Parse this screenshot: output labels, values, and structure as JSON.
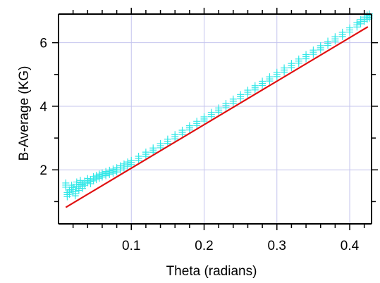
{
  "chart_data": {
    "type": "scatter",
    "xlabel": "Theta (radians)",
    "ylabel": "B-Average (KG)",
    "xlim": [
      0.0,
      0.43
    ],
    "ylim": [
      0.3,
      6.9
    ],
    "x_ticks": [
      {
        "value": 0.1,
        "label": "0.1"
      },
      {
        "value": 0.2,
        "label": "0.2"
      },
      {
        "value": 0.3,
        "label": "0.3"
      },
      {
        "value": 0.4,
        "label": "0.4"
      }
    ],
    "y_ticks": [
      {
        "value": 2,
        "label": "2"
      },
      {
        "value": 4,
        "label": "4"
      },
      {
        "value": 6,
        "label": "6"
      }
    ],
    "grid": true,
    "colors": {
      "points": "#33e8e8",
      "fit": "#e01010",
      "grid": "#c4c4ee",
      "axis": "#000000"
    },
    "series": [
      {
        "kind": "scatter",
        "marker": "plus",
        "x_range": [
          0.01,
          0.427
        ],
        "points": [
          [
            0.01,
            1.52
          ],
          [
            0.012,
            1.22
          ],
          [
            0.015,
            1.3
          ],
          [
            0.018,
            1.45
          ],
          [
            0.02,
            1.38
          ],
          [
            0.023,
            1.25
          ],
          [
            0.025,
            1.55
          ],
          [
            0.028,
            1.42
          ],
          [
            0.03,
            1.6
          ],
          [
            0.033,
            1.48
          ],
          [
            0.036,
            1.58
          ],
          [
            0.04,
            1.66
          ],
          [
            0.044,
            1.63
          ],
          [
            0.048,
            1.72
          ],
          [
            0.052,
            1.76
          ],
          [
            0.056,
            1.8
          ],
          [
            0.06,
            1.84
          ],
          [
            0.065,
            1.88
          ],
          [
            0.07,
            1.92
          ],
          [
            0.075,
            1.96
          ],
          [
            0.08,
            2.0
          ],
          [
            0.085,
            2.06
          ],
          [
            0.09,
            2.12
          ],
          [
            0.095,
            2.18
          ],
          [
            0.1,
            2.23
          ],
          [
            0.11,
            2.36
          ],
          [
            0.12,
            2.49
          ],
          [
            0.13,
            2.62
          ],
          [
            0.14,
            2.76
          ],
          [
            0.15,
            2.9
          ],
          [
            0.16,
            3.04
          ],
          [
            0.17,
            3.18
          ],
          [
            0.18,
            3.32
          ],
          [
            0.19,
            3.46
          ],
          [
            0.2,
            3.6
          ],
          [
            0.21,
            3.74
          ],
          [
            0.22,
            3.88
          ],
          [
            0.23,
            4.02
          ],
          [
            0.24,
            4.16
          ],
          [
            0.25,
            4.3
          ],
          [
            0.26,
            4.44
          ],
          [
            0.27,
            4.58
          ],
          [
            0.28,
            4.72
          ],
          [
            0.29,
            4.86
          ],
          [
            0.3,
            5.0
          ],
          [
            0.31,
            5.14
          ],
          [
            0.32,
            5.28
          ],
          [
            0.33,
            5.42
          ],
          [
            0.34,
            5.56
          ],
          [
            0.35,
            5.7
          ],
          [
            0.36,
            5.84
          ],
          [
            0.37,
            5.98
          ],
          [
            0.38,
            6.12
          ],
          [
            0.39,
            6.26
          ],
          [
            0.4,
            6.4
          ],
          [
            0.41,
            6.56
          ],
          [
            0.415,
            6.66
          ],
          [
            0.42,
            6.74
          ],
          [
            0.424,
            6.8
          ],
          [
            0.427,
            6.84
          ]
        ]
      },
      {
        "kind": "line",
        "x": [
          0.01,
          0.425
        ],
        "y": [
          0.82,
          6.5
        ]
      }
    ]
  }
}
